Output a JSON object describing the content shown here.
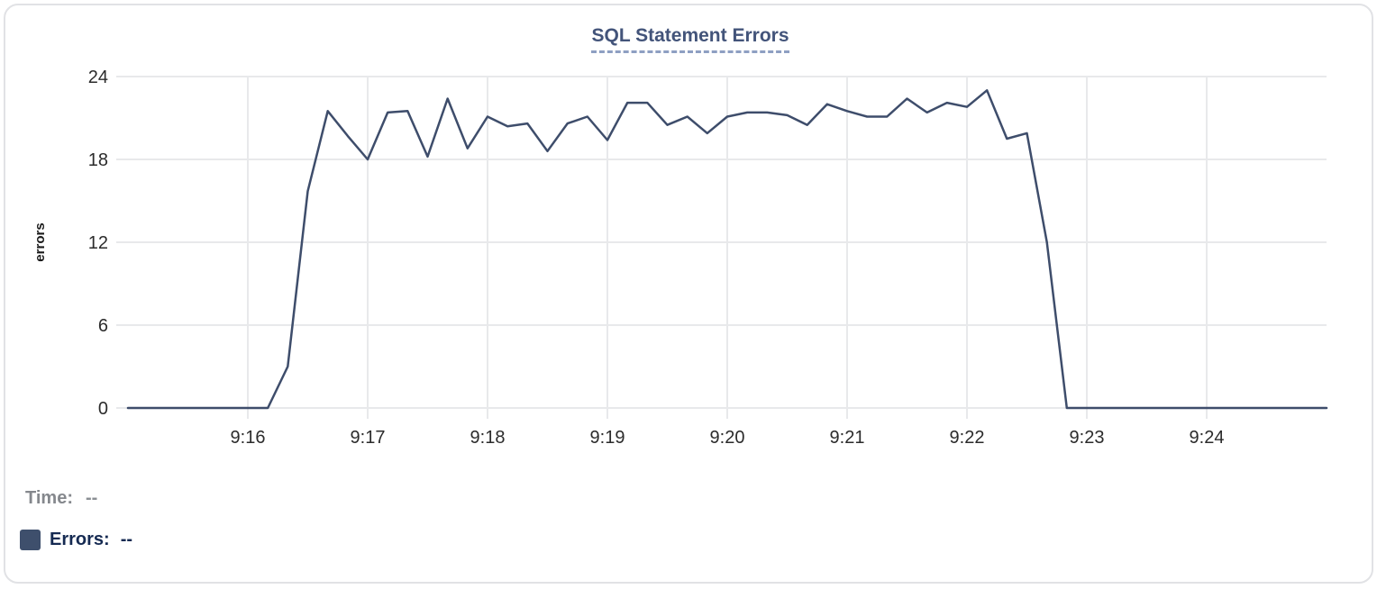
{
  "colors": {
    "card_border": "#e1e2e5",
    "title": "#43547a",
    "title_underline": "#8e9fc2",
    "grid": "#e8e9eb",
    "tick_label": "#2b2b2b",
    "axis_title": "#1a1a1a",
    "accent_line": "#3e4d6b",
    "time_label": "#85888d",
    "time_value": "#8b8f94",
    "errors_label": "#152a52",
    "swatch": "#3e4f6c"
  },
  "legend": {
    "time_label": "Time:",
    "time_value": "--",
    "errors_label": "Errors:",
    "errors_value": "--"
  },
  "chart_data": {
    "type": "line",
    "title": "SQL Statement Errors",
    "xlabel": "",
    "ylabel": "errors",
    "ylim": [
      0,
      24
    ],
    "y_ticks": [
      0,
      6,
      12,
      18,
      24
    ],
    "x_tick_labels": [
      "9:16",
      "9:17",
      "9:18",
      "9:19",
      "9:20",
      "9:21",
      "9:22",
      "9:23",
      "9:24"
    ],
    "x_range": [
      "9:15:00",
      "9:25:00"
    ],
    "grid": true,
    "legend_position": "bottom-left",
    "x": [
      "9:15:00",
      "9:15:10",
      "9:15:20",
      "9:15:30",
      "9:15:40",
      "9:15:50",
      "9:16:00",
      "9:16:10",
      "9:16:20",
      "9:16:30",
      "9:16:40",
      "9:16:50",
      "9:17:00",
      "9:17:10",
      "9:17:20",
      "9:17:30",
      "9:17:40",
      "9:17:50",
      "9:18:00",
      "9:18:10",
      "9:18:20",
      "9:18:30",
      "9:18:40",
      "9:18:50",
      "9:19:00",
      "9:19:10",
      "9:19:20",
      "9:19:30",
      "9:19:40",
      "9:19:50",
      "9:20:00",
      "9:20:10",
      "9:20:20",
      "9:20:30",
      "9:20:40",
      "9:20:50",
      "9:21:00",
      "9:21:10",
      "9:21:20",
      "9:21:30",
      "9:21:40",
      "9:21:50",
      "9:22:00",
      "9:22:10",
      "9:22:20",
      "9:22:30",
      "9:22:40",
      "9:22:50",
      "9:23:00",
      "9:23:10",
      "9:23:20",
      "9:23:30",
      "9:23:40",
      "9:23:50",
      "9:24:00",
      "9:24:10",
      "9:24:20",
      "9:24:30",
      "9:24:40",
      "9:24:50",
      "9:25:00"
    ],
    "series": [
      {
        "name": "Errors",
        "color": "#3e4d6b",
        "values": [
          0,
          0,
          0,
          0,
          0,
          0,
          0,
          0,
          3,
          15.7,
          21.5,
          19.7,
          18,
          21.4,
          21.5,
          18.2,
          22.4,
          18.8,
          21.1,
          20.4,
          20.6,
          18.6,
          20.6,
          21.1,
          19.4,
          22.1,
          22.1,
          20.5,
          21.1,
          19.9,
          21.1,
          21.4,
          21.4,
          21.2,
          20.5,
          22,
          21.5,
          21.1,
          21.1,
          22.4,
          21.4,
          22.1,
          21.8,
          23,
          19.5,
          19.9,
          12,
          0,
          0,
          0,
          0,
          0,
          0,
          0,
          0,
          0,
          0,
          0,
          0,
          0,
          0
        ]
      }
    ]
  }
}
